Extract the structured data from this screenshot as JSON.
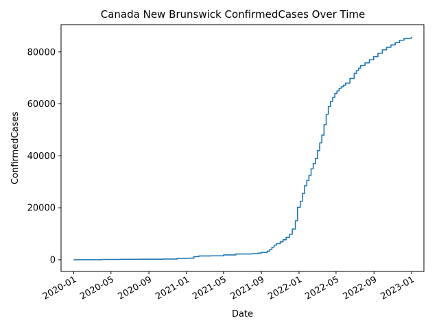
{
  "chart_data": {
    "type": "line",
    "title": "Canada New Brunswick ConfirmedCases Over Time",
    "xlabel": "Date",
    "ylabel": "ConfirmedCases",
    "x_type": "date",
    "xlim": [
      "2019-11-21",
      "2023-02-10"
    ],
    "ylim": [
      -4500,
      90500
    ],
    "grid": false,
    "x_ticks": [
      "2020-01",
      "2020-05",
      "2020-09",
      "2021-01",
      "2021-05",
      "2021-09",
      "2022-01",
      "2022-05",
      "2022-09",
      "2023-01"
    ],
    "y_ticks": [
      0,
      20000,
      40000,
      60000,
      80000
    ],
    "color": "#1f77b4",
    "series": [
      {
        "x": [
          "2020-01-01",
          "2020-03-15",
          "2020-04-01",
          "2020-06-01",
          "2020-08-01",
          "2020-10-01",
          "2020-10-15",
          "2020-12-01",
          "2021-01-01",
          "2021-01-25",
          "2021-02-10",
          "2021-03-20",
          "2021-05-01",
          "2021-06-10",
          "2021-08-01",
          "2021-08-20",
          "2021-09-01",
          "2021-09-20",
          "2021-09-28",
          "2021-10-05",
          "2021-10-12",
          "2021-10-20",
          "2021-11-01",
          "2021-11-10",
          "2021-11-20",
          "2021-12-01",
          "2021-12-10",
          "2021-12-20",
          "2021-12-27",
          "2022-01-01",
          "2022-01-05",
          "2022-01-12",
          "2022-01-19",
          "2022-01-26",
          "2022-02-02",
          "2022-02-09",
          "2022-02-16",
          "2022-02-23",
          "2022-03-02",
          "2022-03-09",
          "2022-03-16",
          "2022-03-23",
          "2022-03-30",
          "2022-04-06",
          "2022-04-13",
          "2022-04-20",
          "2022-04-27",
          "2022-05-04",
          "2022-05-11",
          "2022-05-18",
          "2022-05-25",
          "2022-06-01",
          "2022-06-15",
          "2022-06-29",
          "2022-07-06",
          "2022-07-13",
          "2022-07-20",
          "2022-08-03",
          "2022-08-17",
          "2022-08-31",
          "2022-09-14",
          "2022-09-28",
          "2022-10-12",
          "2022-10-26",
          "2022-11-09",
          "2022-11-23",
          "2022-12-07",
          "2022-12-14",
          "2022-12-21",
          "2022-12-28",
          "2023-01-01"
        ],
        "y": [
          0,
          10,
          120,
          165,
          190,
          210,
          280,
          520,
          590,
          1200,
          1450,
          1500,
          1850,
          2200,
          2300,
          2550,
          2800,
          3300,
          4000,
          4800,
          5600,
          6200,
          6900,
          7700,
          8600,
          9800,
          11800,
          15000,
          20200,
          20200,
          22500,
          25500,
          28500,
          30500,
          32500,
          35000,
          37000,
          39000,
          42000,
          45000,
          48000,
          52000,
          56000,
          59000,
          61000,
          62500,
          64000,
          65000,
          66000,
          66600,
          67200,
          68000,
          69800,
          71700,
          72800,
          73800,
          74800,
          75800,
          77000,
          78200,
          79500,
          80800,
          81800,
          82700,
          83600,
          84500,
          85100,
          85200,
          85250,
          85300,
          85800
        ]
      }
    ]
  }
}
